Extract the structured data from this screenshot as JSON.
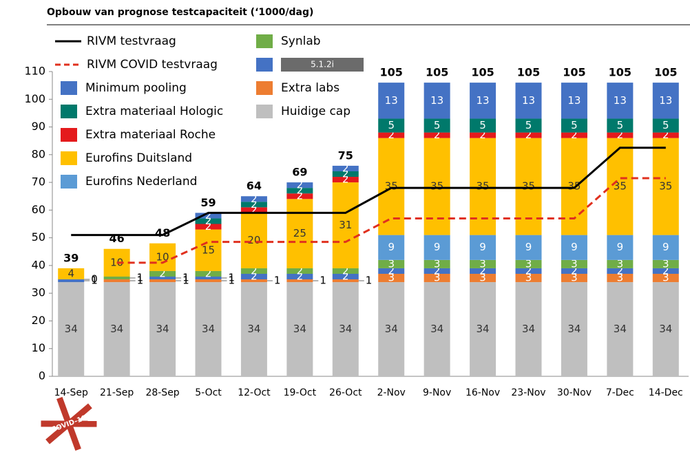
{
  "chart_data": {
    "type": "stacked_bar_line",
    "title": "Opbouw van prognose testcapaciteit (‘1000/dag)",
    "logo": "COVID-19",
    "categories": [
      "14-Sep",
      "21-Sep",
      "28-Sep",
      "5-Oct",
      "12-Oct",
      "19-Oct",
      "26-Oct",
      "2-Nov",
      "9-Nov",
      "16-Nov",
      "23-Nov",
      "30-Nov",
      "7-Dec",
      "14-Dec"
    ],
    "ylim": [
      0,
      110
    ],
    "yticks": [
      0,
      10,
      20,
      30,
      40,
      50,
      60,
      70,
      80,
      90,
      100,
      110
    ],
    "series": [
      {
        "name": "Huidige cap",
        "color": "#bfbfbf",
        "values": [
          34,
          34,
          34,
          34,
          34,
          34,
          34,
          34,
          34,
          34,
          34,
          34,
          34,
          34
        ]
      },
      {
        "name": "Extra labs",
        "color": "#ed7d31",
        "values": [
          null,
          1,
          1,
          1,
          1,
          1,
          1,
          3,
          3,
          3,
          3,
          3,
          3,
          3
        ]
      },
      {
        "name": "5.1.2i",
        "color": "#4472c4",
        "values": [
          1,
          null,
          1,
          1,
          2,
          2,
          2,
          2,
          2,
          2,
          2,
          2,
          2,
          2
        ]
      },
      {
        "name": "Synlab",
        "color": "#70ad47",
        "values": [
          0,
          1,
          2,
          2,
          2,
          2,
          2,
          3,
          3,
          3,
          3,
          3,
          3,
          3
        ]
      },
      {
        "name": "Eurofins Nederland",
        "color": "#5b9bd5",
        "values": [
          null,
          null,
          null,
          null,
          null,
          null,
          null,
          9,
          9,
          9,
          9,
          9,
          9,
          9
        ]
      },
      {
        "name": "Eurofins Duitsland",
        "color": "#ffc000",
        "values": [
          4,
          10,
          10,
          15,
          20,
          25,
          31,
          35,
          35,
          35,
          35,
          35,
          35,
          35
        ]
      },
      {
        "name": "Extra materiaal Roche",
        "color": "#e41a1c",
        "values": [
          null,
          null,
          null,
          2,
          2,
          2,
          2,
          2,
          2,
          2,
          2,
          2,
          2,
          2
        ]
      },
      {
        "name": "Extra materiaal Hologic",
        "color": "#00796b",
        "values": [
          null,
          null,
          null,
          2,
          2,
          2,
          2,
          5,
          5,
          5,
          5,
          5,
          5,
          5
        ]
      },
      {
        "name": "Minimum pooling",
        "color": "#4472c4",
        "values": [
          null,
          null,
          null,
          2,
          2,
          2,
          2,
          13,
          13,
          13,
          13,
          13,
          13,
          13
        ]
      }
    ],
    "totals": [
      39,
      46,
      48,
      59,
      64,
      69,
      75,
      105,
      105,
      105,
      105,
      105,
      105,
      105
    ],
    "lines": [
      {
        "name": "RIVM testvraag",
        "color": "#000000",
        "dashed": false,
        "values": [
          51,
          51,
          51,
          59,
          59,
          59,
          59,
          68,
          68,
          68,
          68,
          68,
          82.5,
          82.5
        ]
      },
      {
        "name": "RIVM COVID testvraag",
        "color": "#e0301e",
        "dashed": true,
        "values": [
          null,
          41,
          41,
          48.5,
          48.5,
          48.5,
          48.5,
          57,
          57,
          57,
          57,
          57,
          71.5,
          71.5
        ]
      }
    ]
  }
}
